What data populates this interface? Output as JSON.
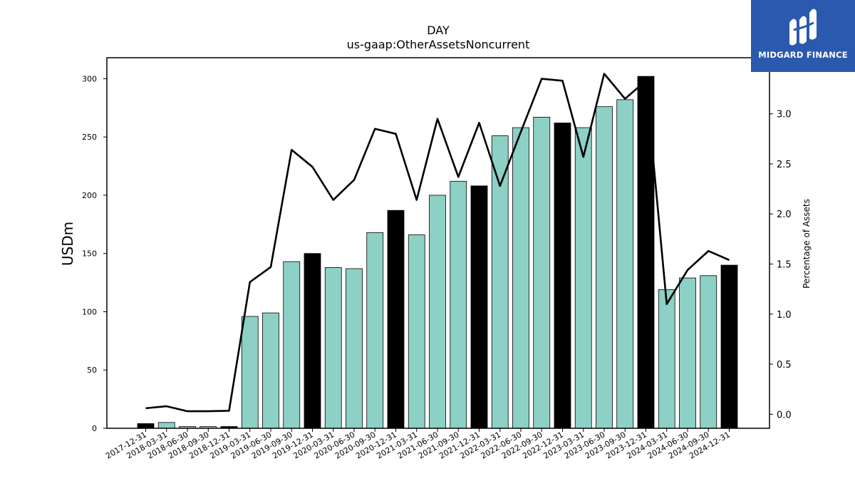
{
  "chart_data": {
    "type": "bar",
    "title": "DAY",
    "subtitle": "us-gaap:OtherAssetsNoncurrent",
    "ylabel": "USDm",
    "y2label": "Percentage of Assets",
    "ylim": [
      0,
      318
    ],
    "y2lim": [
      -0.14,
      3.56
    ],
    "yticks": [
      0,
      50,
      100,
      150,
      200,
      250,
      300
    ],
    "y2ticks": [
      "0.0",
      "0.5",
      "1.0",
      "1.5",
      "2.0",
      "2.5",
      "3.0"
    ],
    "categories": [
      "2017-12-31",
      "2018-03-31",
      "2018-06-30",
      "2018-09-30",
      "2018-12-31",
      "2019-03-31",
      "2019-06-30",
      "2019-09-30",
      "2019-12-31",
      "2020-03-31",
      "2020-06-30",
      "2020-09-30",
      "2020-12-31",
      "2021-03-31",
      "2021-06-30",
      "2021-09-30",
      "2021-12-31",
      "2022-03-31",
      "2022-06-30",
      "2022-09-30",
      "2022-12-31",
      "2023-03-31",
      "2023-06-30",
      "2023-09-30",
      "2023-12-31",
      "2024-03-31",
      "2024-06-30",
      "2024-09-30",
      "2024-12-31"
    ],
    "values": [
      4,
      5,
      1.5,
      1.5,
      1.5,
      96,
      99,
      143,
      150,
      138,
      137,
      168,
      187,
      166,
      200,
      212,
      208,
      251,
      258,
      267,
      262,
      258,
      276,
      282,
      302,
      119,
      129,
      131,
      140
    ],
    "year_end_flags": [
      true,
      false,
      false,
      false,
      true,
      false,
      false,
      false,
      true,
      false,
      false,
      false,
      true,
      false,
      false,
      false,
      true,
      false,
      false,
      false,
      true,
      false,
      false,
      false,
      true,
      false,
      false,
      false,
      true
    ],
    "line_series": {
      "values": [
        0.06,
        0.08,
        0.03,
        0.03,
        0.035,
        1.32,
        1.47,
        2.64,
        2.47,
        2.14,
        2.34,
        2.85,
        2.8,
        2.14,
        2.95,
        2.37,
        2.91,
        2.28,
        2.82,
        3.35,
        3.33,
        2.57,
        3.4,
        3.15,
        3.33,
        1.1,
        1.44,
        1.63,
        1.54
      ]
    },
    "colors": {
      "bar_regular": "#8dd0c5",
      "bar_year_end": "#000000",
      "line": "#000000"
    },
    "grid": false
  },
  "branding": {
    "logo_text": "MIDGARD FINANCE",
    "logo_color": "#2b59ad"
  }
}
